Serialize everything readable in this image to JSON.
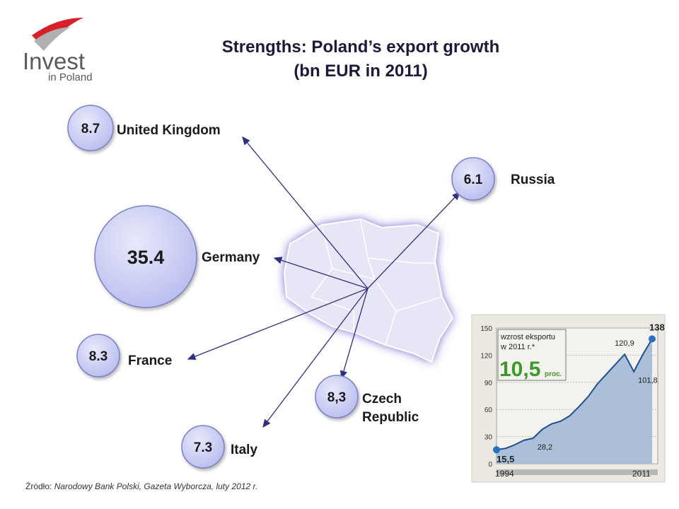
{
  "logo": {
    "line1": "Invest",
    "line2": "in Poland"
  },
  "header": {
    "title_line1": "Strengths: Poland’s export growth",
    "title_line2": "(bn EUR in 2011)"
  },
  "bubbles": [
    {
      "value": "8.7",
      "label": "United Kingdom"
    },
    {
      "value": "6.1",
      "label": "Russia"
    },
    {
      "value": "35.4",
      "label": "Germany"
    },
    {
      "value": "8.3",
      "label": "France"
    },
    {
      "value": "8,3",
      "label": "Czech Republic"
    },
    {
      "value": "7.3",
      "label": "Italy"
    }
  ],
  "inset": {
    "note_line1": "wzrost eksportu",
    "note_line2": "w 2011 r.*",
    "growth": "10,5",
    "growth_unit": "proc.",
    "ylim": [
      0,
      150
    ],
    "yticks": [
      0,
      30,
      60,
      90,
      120,
      150
    ],
    "xlim": [
      1994,
      2011
    ],
    "x": [
      1994,
      1995,
      1996,
      1997,
      1998,
      1999,
      2000,
      2001,
      2002,
      2003,
      2004,
      2005,
      2006,
      2007,
      2008,
      2009,
      2010,
      2011
    ],
    "values": [
      15.5,
      17,
      21,
      26,
      28.2,
      38,
      44,
      47,
      53,
      63,
      74,
      88,
      99,
      110,
      120.9,
      101.8,
      121,
      138
    ],
    "point_labels": [
      {
        "index": 0,
        "label": "15,5"
      },
      {
        "index": 4,
        "label": "28,2"
      },
      {
        "index": 14,
        "label": "120,9"
      },
      {
        "index": 15,
        "label": "101,8"
      },
      {
        "index": 17,
        "label": "138"
      }
    ],
    "start_label": "1994",
    "end_label": "2011"
  },
  "source": {
    "prefix": "Źródło:",
    "text": "Narodowy Bank Polski, Gazeta Wyborcza, luty 2012 r."
  }
}
